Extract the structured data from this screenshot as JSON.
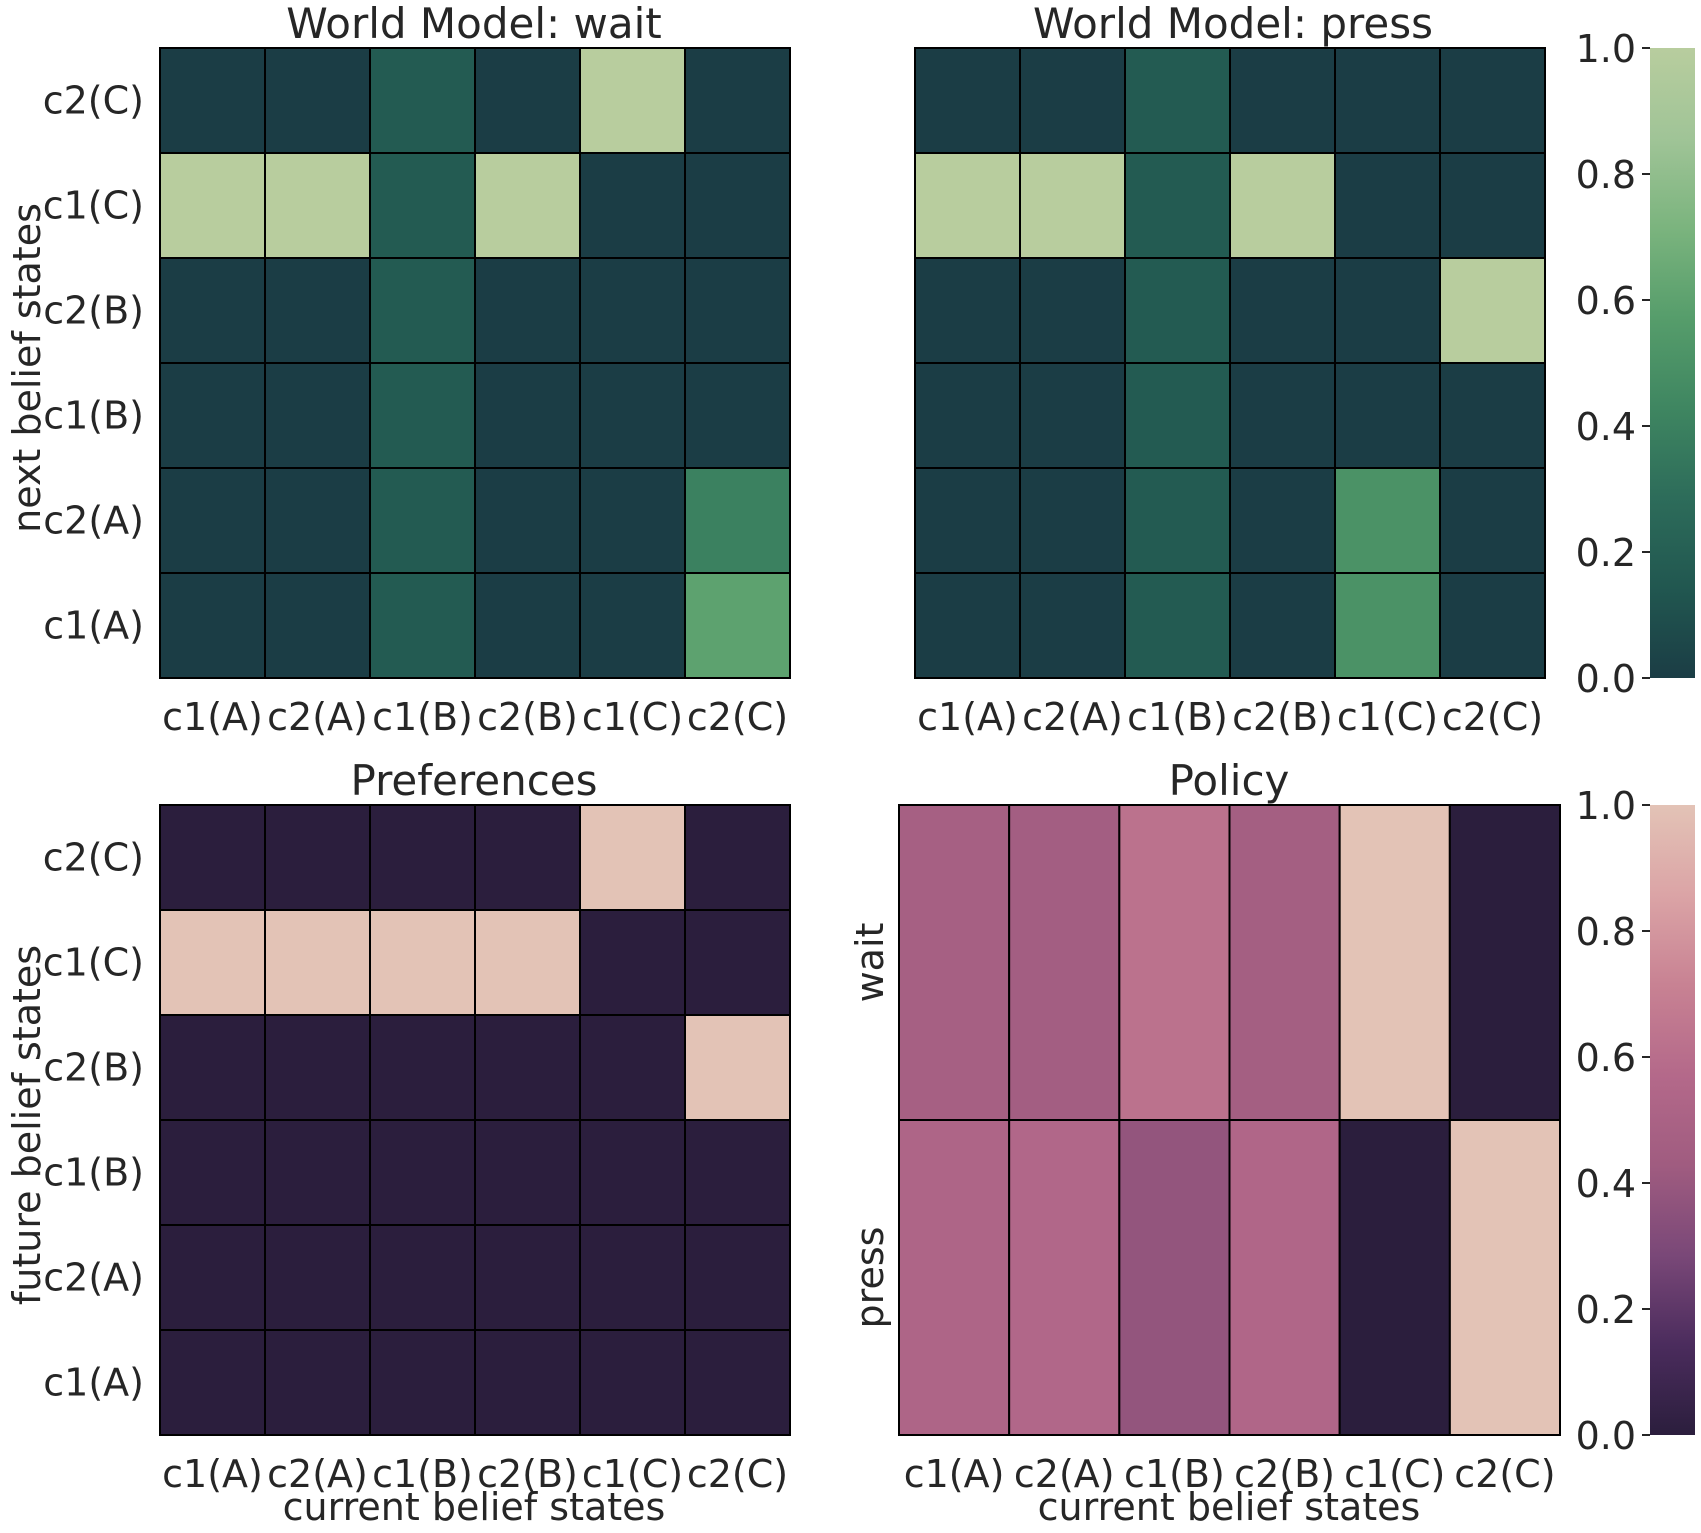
{
  "colors": {
    "green_scale": [
      "#1b3d45",
      "#215750",
      "#2d6c5a",
      "#3f8661",
      "#569d6b",
      "#7bb47e",
      "#a0c497",
      "#b8cd9e"
    ],
    "purple_scale": [
      "#2b1e3d",
      "#4b2c5d",
      "#7a4878",
      "#a05c80",
      "#b4698a",
      "#c88293",
      "#dba4a6",
      "#e3c3b6"
    ],
    "cell_border": "#000000"
  },
  "chart_data": [
    {
      "type": "heatmap",
      "title": "World Model: wait",
      "xlabel": "",
      "ylabel": "next belief states",
      "x_categories": [
        "c1(A)",
        "c2(A)",
        "c1(B)",
        "c2(B)",
        "c1(C)",
        "c2(C)"
      ],
      "y_categories_top_to_bottom": [
        "c2(C)",
        "c1(C)",
        "c2(B)",
        "c1(B)",
        "c2(A)",
        "c1(A)"
      ],
      "colormap": "green",
      "vmin": 0,
      "vmax": 1,
      "values": [
        [
          0,
          0,
          0.17,
          0,
          1,
          0
        ],
        [
          1,
          1,
          0.17,
          1,
          0,
          0
        ],
        [
          0,
          0,
          0.17,
          0,
          0,
          0
        ],
        [
          0,
          0,
          0.17,
          0,
          0,
          0
        ],
        [
          0,
          0,
          0.17,
          0,
          0,
          0.4
        ],
        [
          0,
          0,
          0.17,
          0,
          0,
          0.6
        ]
      ]
    },
    {
      "type": "heatmap",
      "title": "World Model: press",
      "xlabel": "",
      "ylabel": "",
      "x_categories": [
        "c1(A)",
        "c2(A)",
        "c1(B)",
        "c2(B)",
        "c1(C)",
        "c2(C)"
      ],
      "y_categories_top_to_bottom": [],
      "colormap": "green",
      "vmin": 0,
      "vmax": 1,
      "values": [
        [
          0,
          0,
          0.17,
          0,
          0,
          0
        ],
        [
          1,
          1,
          0.17,
          1,
          0,
          0
        ],
        [
          0,
          0,
          0.17,
          0,
          0,
          1
        ],
        [
          0,
          0,
          0.17,
          0,
          0,
          0
        ],
        [
          0,
          0,
          0.17,
          0,
          0.5,
          0
        ],
        [
          0,
          0,
          0.17,
          0,
          0.5,
          0
        ]
      ],
      "colorbar": {
        "ticks": [
          "0.0",
          "0.2",
          "0.4",
          "0.6",
          "0.8",
          "1.0"
        ],
        "range": [
          0,
          1
        ]
      }
    },
    {
      "type": "heatmap",
      "title": "Preferences",
      "xlabel": "current belief states",
      "ylabel": "future belief states",
      "x_categories": [
        "c1(A)",
        "c2(A)",
        "c1(B)",
        "c2(B)",
        "c1(C)",
        "c2(C)"
      ],
      "y_categories_top_to_bottom": [
        "c2(C)",
        "c1(C)",
        "c2(B)",
        "c1(B)",
        "c2(A)",
        "c1(A)"
      ],
      "colormap": "purple",
      "vmin": 0,
      "vmax": 1,
      "values": [
        [
          0,
          0,
          0,
          0,
          1,
          0
        ],
        [
          1,
          1,
          1,
          1,
          0,
          0
        ],
        [
          0,
          0,
          0,
          0,
          0,
          1
        ],
        [
          0,
          0,
          0,
          0,
          0,
          0
        ],
        [
          0,
          0,
          0,
          0,
          0,
          0
        ],
        [
          0,
          0,
          0,
          0,
          0,
          0
        ]
      ]
    },
    {
      "type": "heatmap",
      "title": "Policy",
      "xlabel": "current belief states",
      "ylabel": "",
      "x_categories": [
        "c1(A)",
        "c2(A)",
        "c1(B)",
        "c2(B)",
        "c1(C)",
        "c2(C)"
      ],
      "y_categories_top_to_bottom": [
        "wait",
        "press"
      ],
      "colormap": "purple",
      "vmin": 0,
      "vmax": 1,
      "values": [
        [
          0.47,
          0.45,
          0.62,
          0.46,
          1,
          0
        ],
        [
          0.53,
          0.55,
          0.38,
          0.54,
          0,
          1
        ]
      ],
      "colorbar": {
        "ticks": [
          "0.0",
          "0.2",
          "0.4",
          "0.6",
          "0.8",
          "1.0"
        ],
        "range": [
          0,
          1
        ]
      }
    }
  ]
}
